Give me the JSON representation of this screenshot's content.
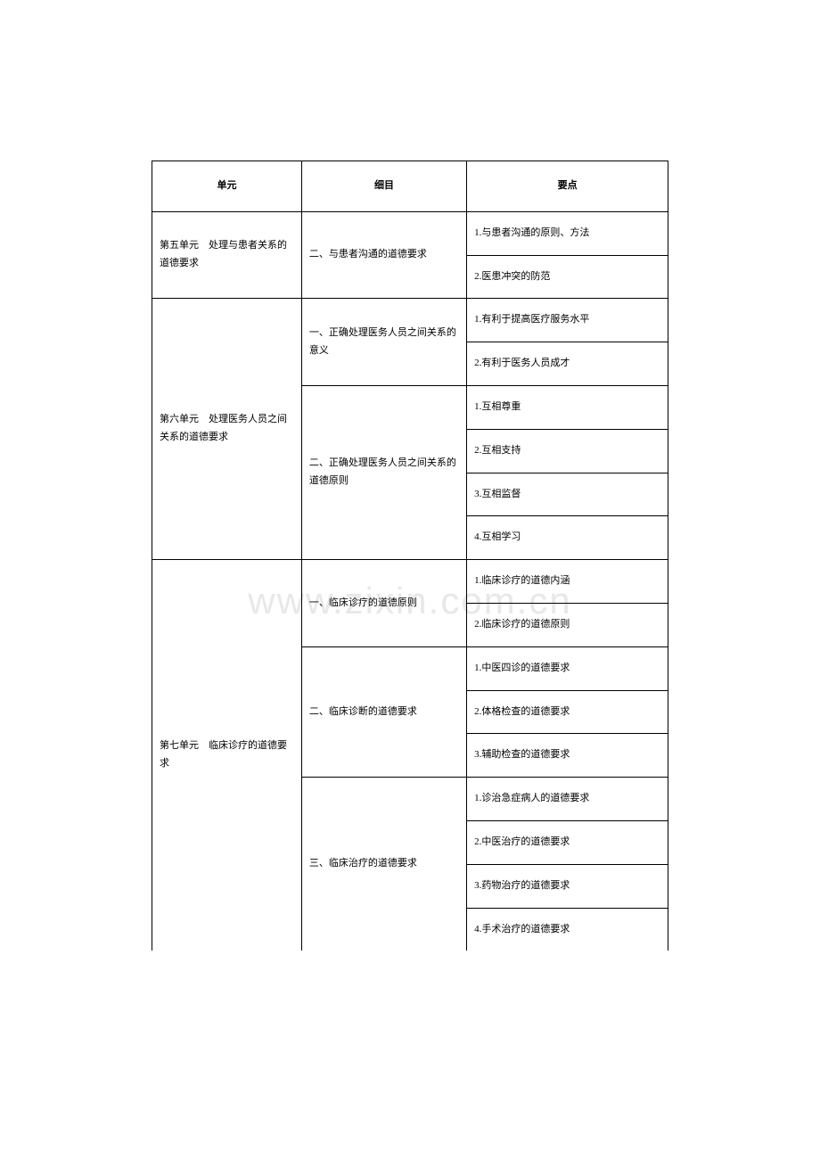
{
  "watermark": "www.zixin.com.cn",
  "table": {
    "border_color": "#000000",
    "font_size": 11,
    "font_family": "SimSun",
    "headers": {
      "col1": "单元",
      "col2": "细目",
      "col3": "要点"
    },
    "column_widths": [
      "29%",
      "32%",
      "39%"
    ],
    "rows": [
      {
        "unit": "第五单元　处理与患者关系的道德要求",
        "unit_rowspan": 2,
        "item": "二、与患者沟通的道德要求",
        "item_rowspan": 2,
        "point": "1.与患者沟通的原则、方法"
      },
      {
        "point": "2.医患冲突的防范"
      },
      {
        "unit": "第六单元　处理医务人员之间关系的道德要求",
        "unit_rowspan": 6,
        "item": "一、正确处理医务人员之间关系的意义",
        "item_rowspan": 2,
        "point": "1.有利于提高医疗服务水平"
      },
      {
        "point": "2.有利于医务人员成才"
      },
      {
        "item": "二、正确处理医务人员之间关系的道德原则",
        "item_rowspan": 4,
        "point": "1.互相尊重"
      },
      {
        "point": "2.互相支持"
      },
      {
        "point": "3.互相监督"
      },
      {
        "point": "4.互相学习"
      },
      {
        "unit": "第七单元　临床诊疗的道德要求",
        "unit_rowspan": 9,
        "item": "一、临床诊疗的道德原则",
        "item_rowspan": 2,
        "point": "1.临床诊疗的道德内涵"
      },
      {
        "point": "2.临床诊疗的道德原则"
      },
      {
        "item": "二、临床诊断的道德要求",
        "item_rowspan": 3,
        "point": "1.中医四诊的道德要求"
      },
      {
        "point": "2.体格检查的道德要求"
      },
      {
        "point": "3.辅助检查的道德要求"
      },
      {
        "item": "三、临床治疗的道德要求",
        "item_rowspan": 4,
        "point": "1.诊治急症病人的道德要求"
      },
      {
        "point": "2.中医治疗的道德要求"
      },
      {
        "point": "3.药物治疗的道德要求"
      },
      {
        "point": "4.手术治疗的道德要求"
      }
    ]
  }
}
